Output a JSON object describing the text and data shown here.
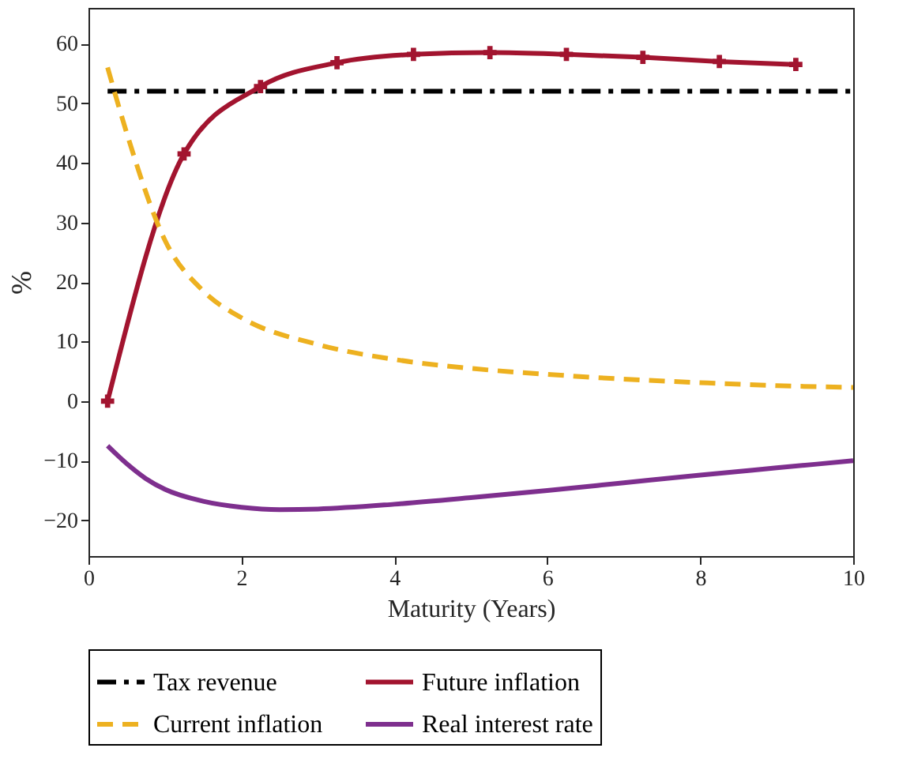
{
  "chart_data": {
    "type": "line",
    "xlabel": "Maturity (Years)",
    "ylabel": "%",
    "xlim": [
      0,
      10
    ],
    "xticks": [
      0,
      2,
      4,
      6,
      8,
      10
    ],
    "ylim": [
      -26,
      66
    ],
    "yticks": [
      -20,
      -10,
      0,
      10,
      20,
      30,
      40,
      50,
      60
    ],
    "grid": false,
    "legend": "bottom",
    "series": [
      {
        "name": "Tax revenue",
        "color": "#000000",
        "line_style": "dashdot",
        "marker": "none",
        "x": [
          0.25,
          10
        ],
        "values": [
          52,
          52
        ]
      },
      {
        "name": "Future inflation",
        "color": "#a2142f",
        "line_style": "solid",
        "marker": "cross",
        "x": [
          0.25,
          1.25,
          2.25,
          3.25,
          4.25,
          5.25,
          6.25,
          7.25,
          8.25,
          9.25
        ],
        "values": [
          0,
          41.5,
          52.8,
          56.8,
          58.2,
          58.5,
          58.2,
          57.7,
          57,
          56.5
        ]
      },
      {
        "name": "Current inflation",
        "color": "#edb120",
        "line_style": "dashed",
        "marker": "none",
        "x": [
          0.25,
          0.5,
          1,
          1.5,
          2,
          3,
          4,
          5,
          6,
          7,
          8,
          9,
          10
        ],
        "values": [
          56,
          45,
          27,
          18.5,
          14,
          9.5,
          7,
          5.5,
          4.5,
          3.7,
          3.1,
          2.6,
          2.3
        ]
      },
      {
        "name": "Real interest rate",
        "color": "#7e2f8e",
        "line_style": "solid",
        "marker": "none",
        "x": [
          0.25,
          0.5,
          0.75,
          1,
          1.5,
          2,
          2.5,
          3,
          4,
          5,
          6,
          7,
          8,
          9,
          10
        ],
        "values": [
          -7.5,
          -10.5,
          -13,
          -14.8,
          -16.8,
          -17.8,
          -18.2,
          -18.1,
          -17.3,
          -16.2,
          -15,
          -13.7,
          -12.4,
          -11.2,
          -10
        ]
      }
    ]
  }
}
